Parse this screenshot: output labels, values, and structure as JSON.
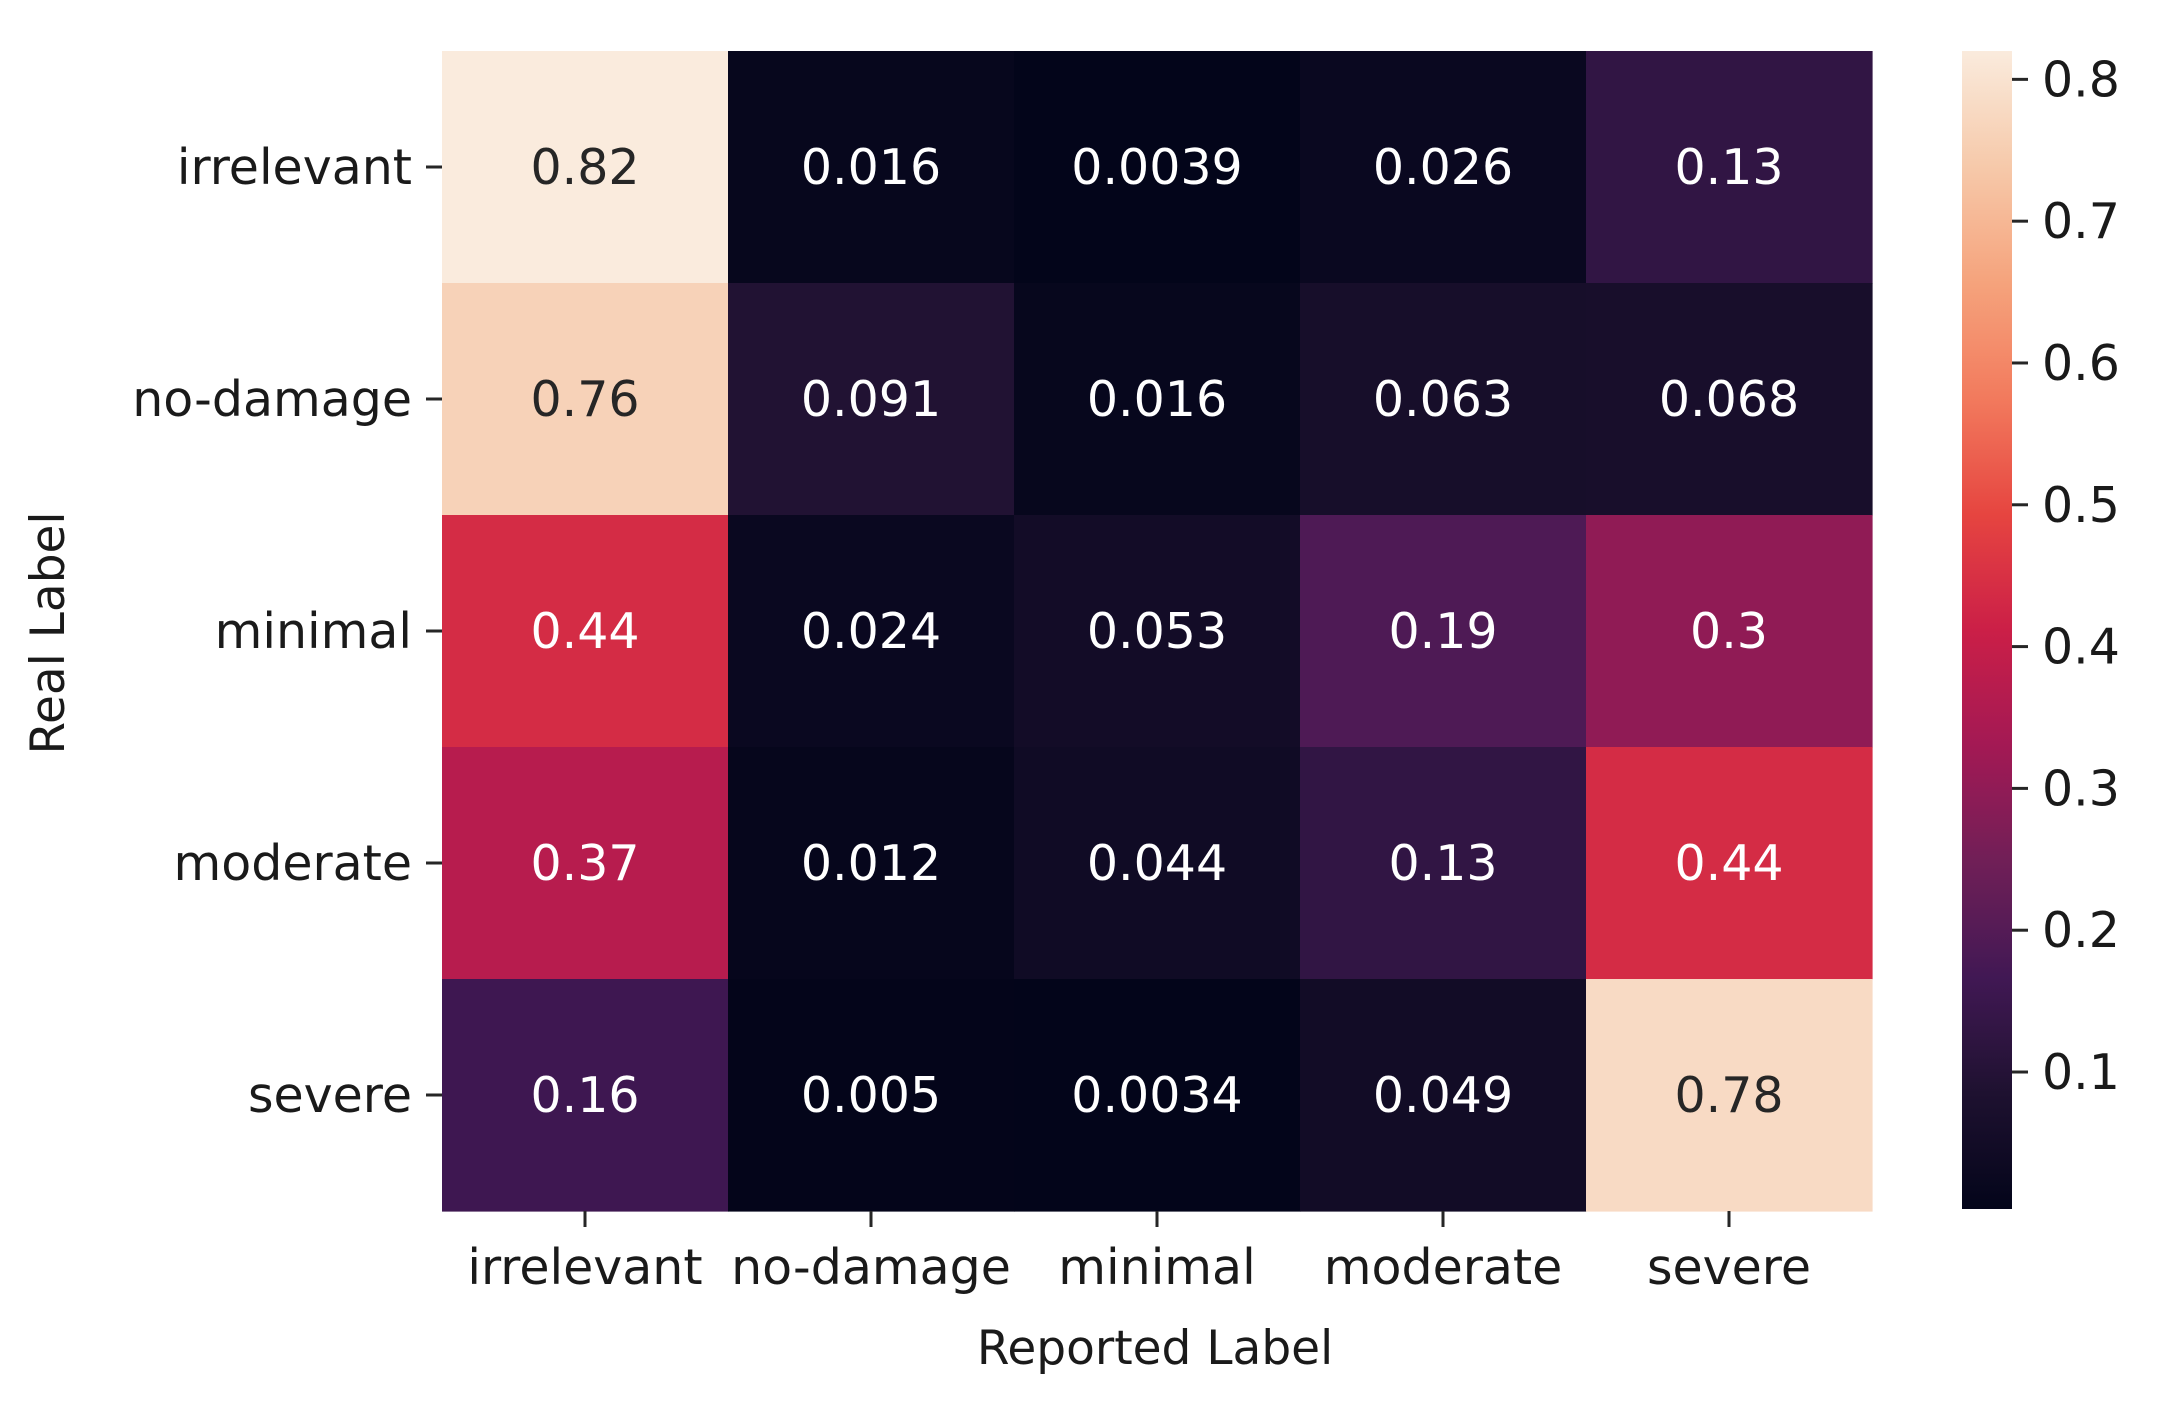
{
  "chart_data": {
    "type": "heatmap",
    "title": "",
    "xlabel": "Reported Label",
    "ylabel": "Real Label",
    "x_categories": [
      "irrelevant",
      "no-damage",
      "minimal",
      "moderate",
      "severe"
    ],
    "y_categories": [
      "irrelevant",
      "no-damage",
      "minimal",
      "moderate",
      "severe"
    ],
    "values": [
      [
        0.82,
        0.016,
        0.0039,
        0.026,
        0.13
      ],
      [
        0.76,
        0.091,
        0.016,
        0.063,
        0.068
      ],
      [
        0.44,
        0.024,
        0.053,
        0.19,
        0.3
      ],
      [
        0.37,
        0.012,
        0.044,
        0.13,
        0.44
      ],
      [
        0.16,
        0.005,
        0.0034,
        0.049,
        0.78
      ]
    ],
    "cell_labels": [
      [
        "0.82",
        "0.016",
        "0.0039",
        "0.026",
        "0.13"
      ],
      [
        "0.76",
        "0.091",
        "0.016",
        "0.063",
        "0.068"
      ],
      [
        "0.44",
        "0.024",
        "0.053",
        "0.19",
        "0.3"
      ],
      [
        "0.37",
        "0.012",
        "0.044",
        "0.13",
        "0.44"
      ],
      [
        "0.16",
        "0.005",
        "0.0034",
        "0.049",
        "0.78"
      ]
    ],
    "colormap": "rocket",
    "color_range": [
      0.0034,
      0.82
    ],
    "colorbar": {
      "ticks": [
        0.1,
        0.2,
        0.3,
        0.4,
        0.5,
        0.6,
        0.7,
        0.8
      ],
      "tick_labels": [
        "0.1",
        "0.2",
        "0.3",
        "0.4",
        "0.5",
        "0.6",
        "0.7",
        "0.8"
      ]
    },
    "colorbar_placement": "right",
    "annotation_dark_text_color": "#262626",
    "annotation_light_text_color": "#ffffff"
  }
}
